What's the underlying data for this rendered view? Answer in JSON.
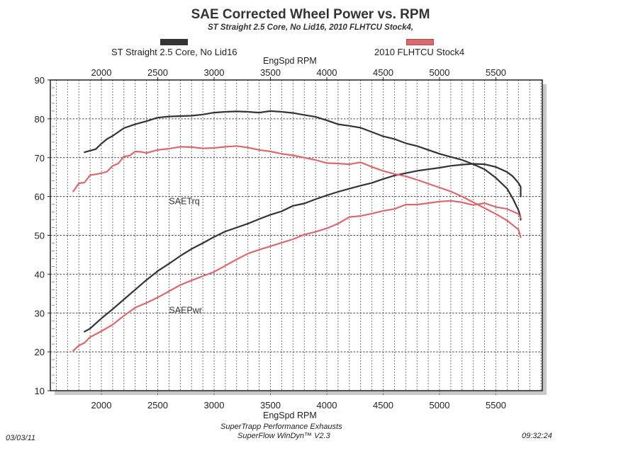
{
  "chart_data": {
    "type": "line",
    "title": "SAE Corrected Wheel Power vs. RPM",
    "subtitle": "ST Straight 2.5 Core, No Lid16, 2010 FLHTCU Stock4,",
    "xlabel_top": "EngSpd  RPM",
    "xlabel": "EngSpd  RPM",
    "ylabel": "",
    "xlim": [
      1547,
      5912
    ],
    "ylim": [
      10,
      90
    ],
    "x_ticks": [
      2000,
      2500,
      3000,
      3500,
      4000,
      4500,
      5000,
      5500
    ],
    "x_tick_labels": [
      "2000",
      "2500",
      "3000",
      "3500",
      "4000",
      "4500",
      "5000",
      "5500"
    ],
    "y_ticks": [
      10,
      20,
      30,
      40,
      50,
      60,
      70,
      80,
      90
    ],
    "y_tick_labels": [
      "10",
      "20",
      "30",
      "40",
      "50",
      "60",
      "70",
      "80",
      "90"
    ],
    "grid": true,
    "legend": [
      {
        "name": "ST Straight 2.5 Core, No Lid16",
        "color": "#333333",
        "position": "top-left"
      },
      {
        "name": "2010 FLHTCU Stock4",
        "color": "#d9696e",
        "position": "top-right"
      }
    ],
    "annotations": [
      {
        "text": "SAETrq",
        "rpm": 2600,
        "value": 58
      },
      {
        "text": "SAEPwr",
        "rpm": 2600,
        "value": 30
      }
    ],
    "series": [
      {
        "name": "ST Straight 2.5 Core, No Lid16 SAETrq",
        "color": "#333333",
        "x": [
          1850,
          1950,
          2000,
          2050,
          2100,
          2200,
          2300,
          2400,
          2500,
          2600,
          2700,
          2800,
          2900,
          3000,
          3100,
          3200,
          3300,
          3400,
          3500,
          3600,
          3700,
          3800,
          3900,
          4000,
          4100,
          4200,
          4300,
          4400,
          4500,
          4600,
          4700,
          4800,
          4900,
          5000,
          5100,
          5200,
          5300,
          5400,
          5500,
          5600,
          5650,
          5700,
          5720,
          5720
        ],
        "y": [
          71.4,
          72.2,
          73.6,
          74.8,
          75.6,
          77.6,
          78.6,
          79.4,
          80.3,
          80.6,
          80.7,
          80.8,
          81.1,
          81.6,
          81.8,
          81.9,
          81.8,
          81.6,
          82.0,
          81.8,
          81.5,
          81.0,
          80.5,
          79.6,
          78.6,
          78.2,
          77.7,
          76.6,
          75.5,
          74.8,
          73.7,
          73.0,
          72.0,
          71.0,
          70.2,
          69.4,
          68.3,
          67.0,
          64.8,
          62.0,
          59.5,
          56.5,
          54.5,
          54.0
        ]
      },
      {
        "name": "ST Straight 2.5 Core, No Lid16 SAEPwr",
        "color": "#333333",
        "x": [
          1850,
          1900,
          2000,
          2100,
          2200,
          2300,
          2400,
          2500,
          2600,
          2700,
          2800,
          2900,
          3000,
          3100,
          3200,
          3300,
          3400,
          3500,
          3600,
          3700,
          3800,
          3900,
          4000,
          4100,
          4200,
          4300,
          4400,
          4500,
          4600,
          4700,
          4800,
          4900,
          5000,
          5100,
          5200,
          5300,
          5400,
          5500,
          5600,
          5650,
          5700,
          5720,
          5720
        ],
        "y": [
          25.2,
          26.0,
          28.6,
          31.0,
          33.5,
          36.0,
          38.5,
          40.8,
          42.7,
          44.7,
          46.5,
          48.0,
          49.6,
          51.0,
          52.0,
          53.0,
          54.2,
          55.3,
          56.2,
          57.6,
          58.2,
          59.3,
          60.3,
          61.2,
          62.0,
          62.8,
          63.5,
          64.5,
          65.4,
          66.0,
          66.6,
          67.0,
          67.4,
          67.9,
          68.2,
          68.4,
          68.3,
          67.6,
          66.3,
          65.2,
          63.5,
          62.5,
          60.0
        ]
      },
      {
        "name": "2010 FLHTCU Stock4 SAETrq",
        "color": "#d9696e",
        "x": [
          1750,
          1800,
          1850,
          1900,
          1950,
          2000,
          2050,
          2100,
          2150,
          2200,
          2250,
          2300,
          2350,
          2400,
          2500,
          2600,
          2700,
          2800,
          2900,
          3000,
          3100,
          3200,
          3300,
          3400,
          3500,
          3600,
          3700,
          3800,
          3900,
          4000,
          4100,
          4200,
          4300,
          4400,
          4500,
          4600,
          4700,
          4800,
          4900,
          5000,
          5100,
          5200,
          5300,
          5400,
          5500,
          5600,
          5700,
          5720
        ],
        "y": [
          61.3,
          63.4,
          63.6,
          65.5,
          65.7,
          66.0,
          66.4,
          67.9,
          68.5,
          70.3,
          70.5,
          71.6,
          71.5,
          71.2,
          72.0,
          72.3,
          72.8,
          72.7,
          72.4,
          72.5,
          72.8,
          73.0,
          72.6,
          72.0,
          71.6,
          71.0,
          70.6,
          70.0,
          69.4,
          68.6,
          68.5,
          68.3,
          68.8,
          67.6,
          66.6,
          65.8,
          65.2,
          64.3,
          63.3,
          62.3,
          61.3,
          60.0,
          58.5,
          57.0,
          55.5,
          53.8,
          51.5,
          49.5
        ]
      },
      {
        "name": "2010 FLHTCU Stock4 SAEPwr",
        "color": "#d9696e",
        "x": [
          1750,
          1800,
          1850,
          1900,
          2000,
          2100,
          2200,
          2300,
          2400,
          2500,
          2600,
          2700,
          2800,
          2900,
          3000,
          3100,
          3200,
          3300,
          3400,
          3500,
          3600,
          3700,
          3800,
          3900,
          4000,
          4100,
          4200,
          4300,
          4400,
          4500,
          4600,
          4700,
          4800,
          4900,
          5000,
          5100,
          5200,
          5300,
          5400,
          5500,
          5600,
          5700,
          5720
        ],
        "y": [
          20.3,
          21.6,
          22.3,
          23.8,
          25.3,
          27.0,
          29.3,
          31.4,
          32.6,
          34.0,
          35.6,
          37.2,
          38.4,
          39.5,
          40.6,
          42.2,
          43.8,
          45.3,
          46.3,
          47.2,
          48.1,
          49.0,
          50.2,
          50.9,
          51.8,
          53.0,
          54.7,
          55.0,
          55.6,
          56.3,
          56.8,
          57.9,
          57.9,
          58.3,
          58.7,
          58.9,
          58.5,
          57.8,
          58.3,
          57.3,
          56.8,
          55.5,
          54.5
        ]
      }
    ],
    "footer": {
      "date": "03/03/11",
      "time": "09:32:24",
      "line1": "SuperTrapp Performance Exhausts",
      "line2": "SuperFlow WinDyn™ V2.3"
    }
  }
}
